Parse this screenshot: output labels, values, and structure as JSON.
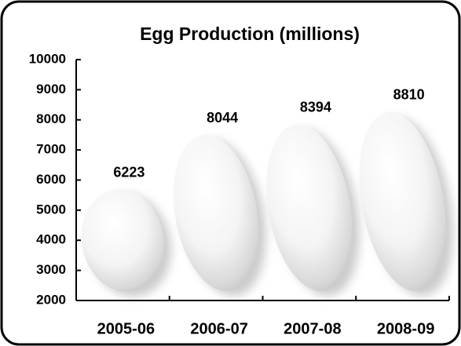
{
  "chart_data": {
    "type": "pictograph",
    "title": "Egg Production (millions)",
    "categories": [
      "2005-06",
      "2006-07",
      "2007-08",
      "2008-09"
    ],
    "values": [
      6223,
      8044,
      8394,
      8810
    ],
    "ylim": [
      2000,
      10000
    ],
    "yticks": [
      2000,
      3000,
      4000,
      5000,
      6000,
      7000,
      8000,
      9000,
      10000
    ]
  }
}
